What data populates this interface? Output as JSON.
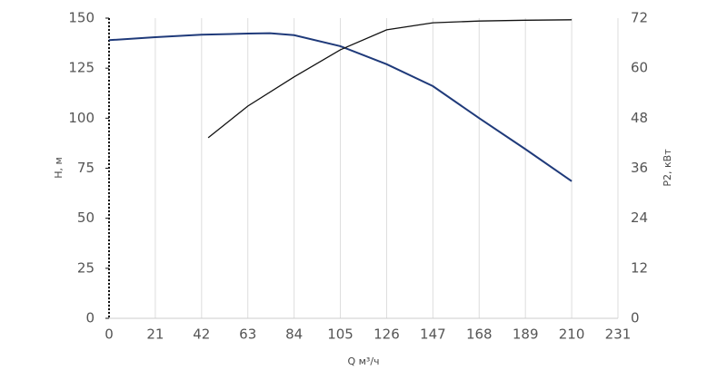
{
  "chart_data": {
    "type": "line",
    "xlabel": "Q м³/ч",
    "ylabel": "H, м",
    "y2label": "P2, кВт",
    "xlim": [
      0,
      231
    ],
    "xticks": [
      0,
      21,
      42,
      63,
      84,
      105,
      126,
      147,
      168,
      189,
      210,
      231
    ],
    "ylim": [
      0,
      150
    ],
    "yticks": [
      0,
      25,
      50,
      75,
      100,
      125,
      150
    ],
    "y2lim": [
      0,
      72
    ],
    "y2ticks": [
      0,
      12,
      24,
      36,
      48,
      60,
      72
    ],
    "grid": true,
    "series": [
      {
        "name": "H",
        "color": "#1f3a7a",
        "axis": "y",
        "x": [
          0,
          21,
          42,
          63,
          73,
          84,
          105,
          126,
          147,
          168,
          189,
          210
        ],
        "values": [
          139,
          140.5,
          141.7,
          142.3,
          142.5,
          141.5,
          136,
          127,
          116,
          100,
          84.5,
          68.5
        ]
      },
      {
        "name": "P2",
        "color": "#111111",
        "axis": "y2",
        "x": [
          45,
          63,
          84,
          105,
          126,
          147,
          168,
          189,
          210
        ],
        "values": [
          43.3,
          50.9,
          57.9,
          64.4,
          69.2,
          70.9,
          71.3,
          71.5,
          71.6
        ]
      }
    ]
  }
}
